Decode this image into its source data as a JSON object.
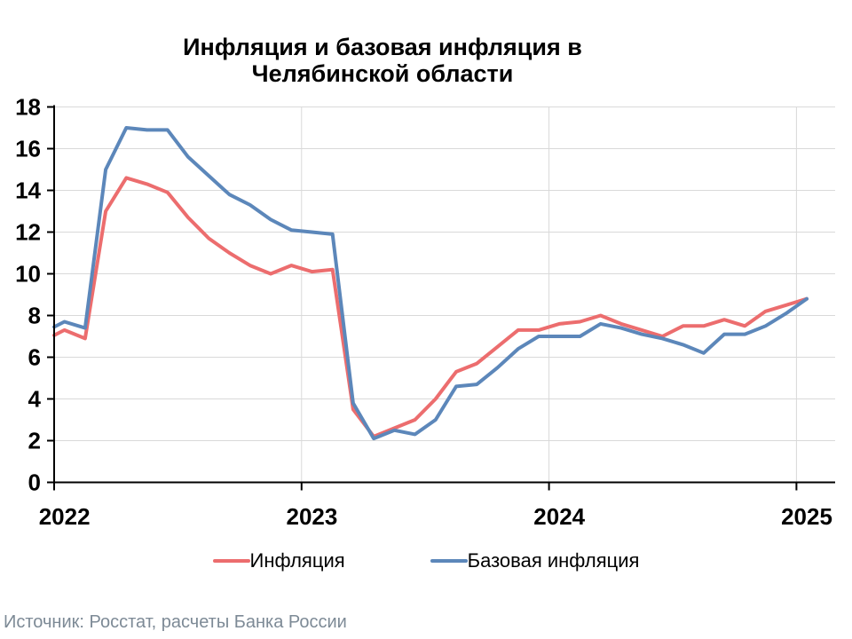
{
  "title": {
    "line1": "Инфляция и базовая инфляция в",
    "line2": "Челябинской области"
  },
  "source": "Источник: Росстат, расчеты Банка России",
  "legend": [
    {
      "label": "Инфляция",
      "color": "#ec6d6e"
    },
    {
      "label": "Базовая инфляция",
      "color": "#5c87ba"
    }
  ],
  "colors": {
    "inflation_line": "#ec6d6e",
    "core_inflation_line": "#5c87ba",
    "grid": "#d9d9d9",
    "axis": "#000000",
    "source_text": "#7d8a96"
  },
  "chart_data": {
    "type": "line",
    "x": [
      "2022-01",
      "2022-02",
      "2022-03",
      "2022-04",
      "2022-05",
      "2022-06",
      "2022-07",
      "2022-08",
      "2022-09",
      "2022-10",
      "2022-11",
      "2022-12",
      "2023-01",
      "2023-02",
      "2023-03",
      "2023-04",
      "2023-05",
      "2023-06",
      "2023-07",
      "2023-08",
      "2023-09",
      "2023-10",
      "2023-11",
      "2023-12",
      "2024-01",
      "2024-02",
      "2024-03",
      "2024-04",
      "2024-05",
      "2024-06",
      "2024-07",
      "2024-08",
      "2024-09",
      "2024-10",
      "2024-11",
      "2024-12",
      "2025-01"
    ],
    "series": [
      {
        "name": "Инфляция",
        "color": "#ec6d6e",
        "values": [
          7.3,
          6.9,
          13.0,
          14.6,
          14.3,
          13.9,
          12.7,
          11.7,
          11.0,
          10.4,
          10.0,
          10.4,
          10.1,
          10.2,
          3.5,
          2.2,
          2.6,
          3.0,
          4.0,
          5.3,
          5.7,
          6.5,
          7.3,
          7.3,
          7.6,
          7.7,
          8.0,
          7.6,
          7.3,
          7.0,
          7.5,
          7.5,
          7.8,
          7.5,
          8.2,
          8.5,
          8.8
        ]
      },
      {
        "name": "Базовая инфляция",
        "color": "#5c87ba",
        "values": [
          7.7,
          7.4,
          15.0,
          17.0,
          16.9,
          16.9,
          15.6,
          14.7,
          13.8,
          13.3,
          12.6,
          12.1,
          12.0,
          11.9,
          3.8,
          2.1,
          2.5,
          2.3,
          3.0,
          4.6,
          4.7,
          5.5,
          6.4,
          7.0,
          7.0,
          7.0,
          7.6,
          7.4,
          7.1,
          6.9,
          6.6,
          6.2,
          7.1,
          7.1,
          7.5,
          8.1,
          8.8
        ]
      }
    ],
    "left_edge_values": {
      "Инфляция": 7.05,
      "Базовая инфляция": 7.45
    },
    "xticks": [
      "2022",
      "2023",
      "2024",
      "2025"
    ],
    "ylim": [
      0,
      18
    ],
    "ytick_step": 2,
    "grid": true,
    "legend_position": "bottom"
  }
}
